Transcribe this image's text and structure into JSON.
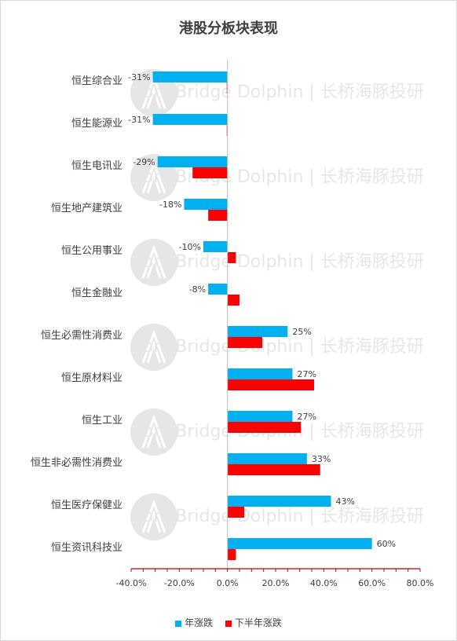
{
  "colors": {
    "series1": "#00b0f0",
    "series2": "#ff0000",
    "axis": "#c00000",
    "text": "#404040",
    "watermark": "#e6e6e6"
  },
  "watermark": {
    "text_en": "LongBridge Dolphin",
    "sep": "|",
    "text_cn": "长桥海豚投研"
  },
  "chart_data": {
    "type": "bar",
    "orientation": "horizontal",
    "title": "港股分板块表现",
    "categories": [
      "恒生综合业",
      "恒生能源业",
      "恒生电讯业",
      "恒生地产建筑业",
      "恒生公用事业",
      "恒生金融业",
      "恒生必需性消费业",
      "恒生原材料业",
      "恒生工业",
      "恒生非必需性消费业",
      "恒生医疗保健业",
      "恒生资讯科技业"
    ],
    "series": [
      {
        "name": "年涨跌",
        "values": [
          -31,
          -31,
          -29,
          -18,
          -10,
          -8,
          25,
          27,
          27,
          33,
          43,
          60
        ],
        "labels": [
          "-31%",
          "-31%",
          "-29%",
          "-18%",
          "-10%",
          "-8%",
          "25%",
          "27%",
          "27%",
          "33%",
          "43%",
          "60%"
        ]
      },
      {
        "name": "下半年涨跌",
        "values": [
          -0.3,
          -0.3,
          -14.5,
          -8,
          3.5,
          5,
          14.5,
          36,
          30.5,
          38.5,
          7,
          3.5
        ]
      }
    ],
    "xlim": [
      -40,
      80
    ],
    "xticks": [
      "-40.0%",
      "-20.0%",
      "0.0%",
      "20.0%",
      "40.0%",
      "60.0%",
      "80.0%"
    ],
    "legend_position": "bottom",
    "grid": false
  }
}
